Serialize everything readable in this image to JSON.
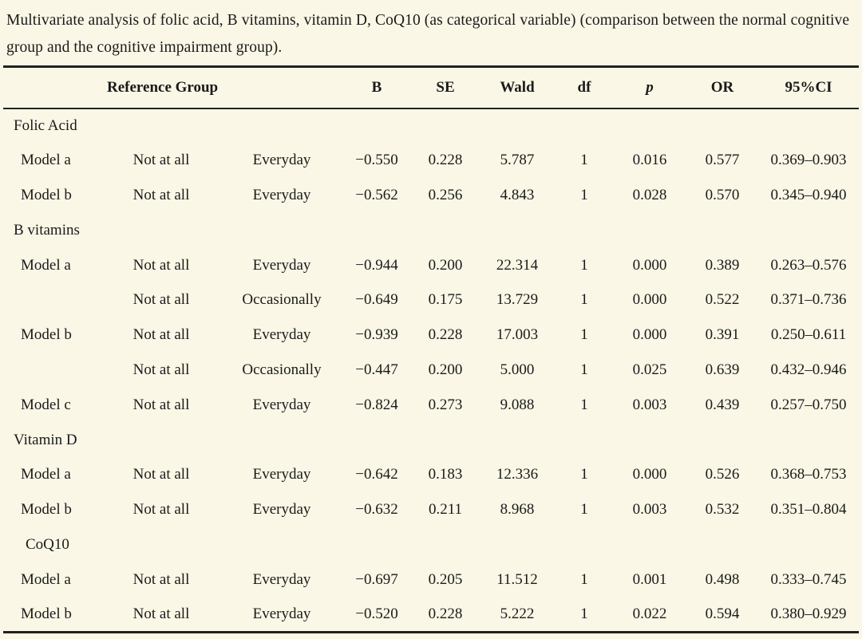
{
  "caption": "Multivariate analysis of folic acid, B vitamins, vitamin D, CoQ10 (as categorical variable) (comparison between the normal cognitive group and the cognitive impairment group).",
  "colors": {
    "background": "#faf7e6",
    "text": "#1a1a1a",
    "rule": "#222222"
  },
  "table": {
    "headers": {
      "reference_group": "Reference Group",
      "b": "B",
      "se": "SE",
      "wald": "Wald",
      "df": "df",
      "p": "p",
      "or": "OR",
      "ci": "95%CI"
    },
    "rows": [
      {
        "type": "section",
        "label": "Folic Acid",
        "indent": false
      },
      {
        "type": "data",
        "cells": [
          "Model a",
          "Not at all",
          "Everyday",
          "−0.550",
          "0.228",
          "5.787",
          "1",
          "0.016",
          "0.577",
          "0.369–0.903"
        ]
      },
      {
        "type": "data",
        "cells": [
          "Model b",
          "Not at all",
          "Everyday",
          "−0.562",
          "0.256",
          "4.843",
          "1",
          "0.028",
          "0.570",
          "0.345–0.940"
        ]
      },
      {
        "type": "section",
        "label": "B vitamins",
        "indent": false
      },
      {
        "type": "data",
        "cells": [
          "Model a",
          "Not at all",
          "Everyday",
          "−0.944",
          "0.200",
          "22.314",
          "1",
          "0.000",
          "0.389",
          "0.263–0.576"
        ]
      },
      {
        "type": "data",
        "cells": [
          "",
          "Not at all",
          "Occasionally",
          "−0.649",
          "0.175",
          "13.729",
          "1",
          "0.000",
          "0.522",
          "0.371–0.736"
        ]
      },
      {
        "type": "data",
        "cells": [
          "Model b",
          "Not at all",
          "Everyday",
          "−0.939",
          "0.228",
          "17.003",
          "1",
          "0.000",
          "0.391",
          "0.250–0.611"
        ]
      },
      {
        "type": "data",
        "cells": [
          "",
          "Not at all",
          "Occasionally",
          "−0.447",
          "0.200",
          "5.000",
          "1",
          "0.025",
          "0.639",
          "0.432–0.946"
        ]
      },
      {
        "type": "data",
        "cells": [
          "Model c",
          "Not at all",
          "Everyday",
          "−0.824",
          "0.273",
          "9.088",
          "1",
          "0.003",
          "0.439",
          "0.257–0.750"
        ]
      },
      {
        "type": "section",
        "label": "Vitamin D",
        "indent": false
      },
      {
        "type": "data",
        "cells": [
          "Model a",
          "Not at all",
          "Everyday",
          "−0.642",
          "0.183",
          "12.336",
          "1",
          "0.000",
          "0.526",
          "0.368–0.753"
        ]
      },
      {
        "type": "data",
        "cells": [
          "Model b",
          "Not at all",
          "Everyday",
          "−0.632",
          "0.211",
          "8.968",
          "1",
          "0.003",
          "0.532",
          "0.351–0.804"
        ]
      },
      {
        "type": "section",
        "label": "CoQ10",
        "indent": true
      },
      {
        "type": "data",
        "cells": [
          "Model a",
          "Not at all",
          "Everyday",
          "−0.697",
          "0.205",
          "11.512",
          "1",
          "0.001",
          "0.498",
          "0.333–0.745"
        ]
      },
      {
        "type": "data",
        "cells": [
          "Model b",
          "Not at all",
          "Everyday",
          "−0.520",
          "0.228",
          "5.222",
          "1",
          "0.022",
          "0.594",
          "0.380–0.929"
        ]
      }
    ]
  }
}
